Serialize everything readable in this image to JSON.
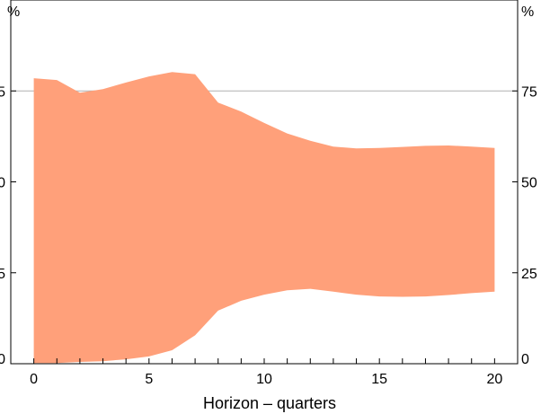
{
  "chart_data": {
    "type": "area",
    "xlabel": "Horizon – quarters",
    "y_unit_left": "%",
    "y_unit_right": "%",
    "xlim": [
      -1,
      21
    ],
    "ylim": [
      0,
      100
    ],
    "x_ticks": [
      0,
      5,
      10,
      15,
      20
    ],
    "x_tick_labels": [
      "0",
      "5",
      "10",
      "15",
      "20"
    ],
    "y_ticks": [
      0,
      25,
      50,
      75
    ],
    "y_tick_labels": [
      "0",
      "25",
      "50",
      "75"
    ],
    "gridlines": [
      75
    ],
    "band": {
      "color": "#FFA07A",
      "x": [
        0,
        1,
        2,
        3,
        4,
        5,
        6,
        7,
        8,
        9,
        10,
        11,
        12,
        13,
        14,
        15,
        16,
        17,
        18,
        19,
        20
      ],
      "upper": [
        78.5,
        78,
        74.5,
        75.5,
        77.3,
        79,
        80.2,
        79.6,
        71.8,
        69.3,
        66.2,
        63.3,
        61.3,
        59.7,
        59.2,
        59.3,
        59.6,
        59.9,
        60,
        59.7,
        59.3
      ],
      "lower": [
        0.2,
        0.2,
        0.5,
        0.7,
        1.2,
        2,
        3.7,
        7.8,
        14.6,
        17.3,
        19,
        20.2,
        20.6,
        19.8,
        19,
        18.5,
        18.4,
        18.5,
        18.9,
        19.4,
        19.8
      ]
    }
  }
}
